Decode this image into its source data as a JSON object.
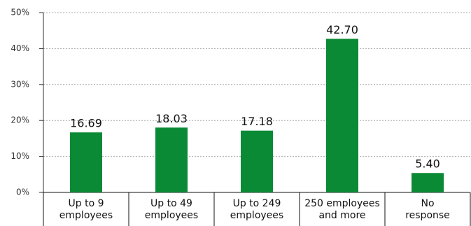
{
  "chart_data": {
    "type": "bar",
    "categories": [
      "Up to 9\nemployees",
      "Up to 49\nemployees",
      "Up to 249\nemployees",
      "250 employees\nand more",
      "No\nresponse"
    ],
    "values": [
      16.69,
      18.03,
      17.18,
      42.7,
      5.4
    ],
    "value_labels": [
      "16.69",
      "18.03",
      "17.18",
      "42.70",
      "5.40"
    ],
    "color": "#0b8a36",
    "ylim": [
      0,
      50
    ],
    "yticks": [
      {
        "value": 0,
        "label": "0%"
      },
      {
        "value": 10,
        "label": "10%"
      },
      {
        "value": 20,
        "label": "20%"
      },
      {
        "value": 30,
        "label": "30%"
      },
      {
        "value": 40,
        "label": "40%"
      },
      {
        "value": 50,
        "label": "50%"
      }
    ],
    "grid": true
  }
}
